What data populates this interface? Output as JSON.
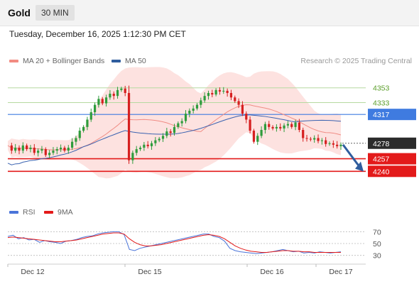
{
  "header": {
    "instrument": "Gold",
    "interval": "30 MIN"
  },
  "timestamp": "Tuesday, December 16, 2025 1:12:30 PM CET",
  "legend": {
    "items": [
      {
        "label": "MA 20 + Bollinger Bands",
        "color": "#f28b82"
      },
      {
        "label": "MA 50",
        "color": "#2f5d9e"
      }
    ],
    "credit": "Research © 2025 Trading Central"
  },
  "rsi_legend": {
    "items": [
      {
        "label": "RSI",
        "color": "#4a74d9"
      },
      {
        "label": "9MA",
        "color": "#e31a1a"
      }
    ]
  },
  "colors": {
    "up": "#2e9c3c",
    "down": "#d62020",
    "band": "#fde2e0",
    "ma20": "#f08c84",
    "ma50": "#3a62b0",
    "support": "#e31a1a",
    "resistance_line": "#b5d9a0",
    "pivot": "#3f7be0",
    "last": "#2b2b2b"
  },
  "chart_data": [
    {
      "type": "candlestick",
      "title": "Gold",
      "x_labels": [
        "Dec 12",
        "Dec 15",
        "Dec 16",
        "Dec 17"
      ],
      "ylim": [
        4198,
        4395
      ],
      "levels": [
        {
          "value": 4353,
          "label": "4353",
          "kind": "resistance"
        },
        {
          "value": 4333,
          "label": "4333",
          "kind": "resistance"
        },
        {
          "value": 4317,
          "label": "4317",
          "kind": "pivot"
        },
        {
          "value": 4278,
          "label": "4278",
          "kind": "last"
        },
        {
          "value": 4257,
          "label": "4257",
          "kind": "support"
        },
        {
          "value": 4240,
          "label": "4240",
          "kind": "support"
        }
      ],
      "price_path": [
        4275,
        4268,
        4272,
        4268,
        4275,
        4270,
        4272,
        4265,
        4268,
        4270,
        4262,
        4265,
        4268,
        4270,
        4272,
        4268,
        4272,
        4280,
        4285,
        4295,
        4300,
        4310,
        4320,
        4330,
        4338,
        4332,
        4340,
        4345,
        4342,
        4350,
        4352,
        4346,
        4255,
        4265,
        4270,
        4272,
        4276,
        4274,
        4278,
        4282,
        4284,
        4288,
        4294,
        4292,
        4300,
        4305,
        4308,
        4318,
        4322,
        4325,
        4330,
        4336,
        4342,
        4346,
        4344,
        4350,
        4348,
        4349,
        4346,
        4340,
        4335,
        4330,
        4318,
        4310,
        4295,
        4280,
        4288,
        4296,
        4304,
        4300,
        4298,
        4300,
        4298,
        4302,
        4304,
        4300,
        4306,
        4296,
        4285,
        4284,
        4283,
        4285,
        4281,
        4282,
        4277,
        4278,
        4276,
        4274,
        4276
      ],
      "series": [
        {
          "name": "MA 20 + Bollinger Bands",
          "kind": "band"
        },
        {
          "name": "MA 50",
          "kind": "line"
        }
      ],
      "forecast": {
        "from": 4278,
        "to": 4257
      }
    },
    {
      "type": "line",
      "title": "RSI",
      "ylim": [
        20,
        80
      ],
      "y_ticks": [
        70,
        50,
        30
      ],
      "series": [
        {
          "name": "RSI",
          "values": [
            62,
            64,
            58,
            60,
            56,
            57,
            52,
            55,
            53,
            52,
            50,
            54,
            55,
            57,
            60,
            62,
            63,
            66,
            68,
            69,
            70,
            70,
            65,
            40,
            38,
            42,
            44,
            46,
            48,
            50,
            52,
            54,
            56,
            58,
            60,
            62,
            64,
            66,
            66,
            62,
            60,
            54,
            42,
            38,
            36,
            35,
            34,
            33,
            34,
            35,
            36,
            38,
            40,
            38,
            36,
            37,
            34,
            35,
            34,
            36,
            35,
            34,
            35,
            36
          ]
        },
        {
          "name": "9MA",
          "values": [
            60,
            61,
            60,
            59,
            58,
            57,
            56,
            55,
            54,
            53,
            53,
            54,
            55,
            56,
            58,
            60,
            62,
            64,
            66,
            67,
            68,
            68,
            66,
            58,
            52,
            48,
            46,
            46,
            47,
            48,
            50,
            52,
            54,
            56,
            58,
            60,
            62,
            64,
            65,
            64,
            62,
            58,
            52,
            46,
            42,
            39,
            37,
            36,
            35,
            35,
            36,
            37,
            38,
            38,
            37,
            37,
            36,
            36,
            35,
            35,
            35,
            35,
            35,
            35
          ]
        }
      ]
    }
  ]
}
